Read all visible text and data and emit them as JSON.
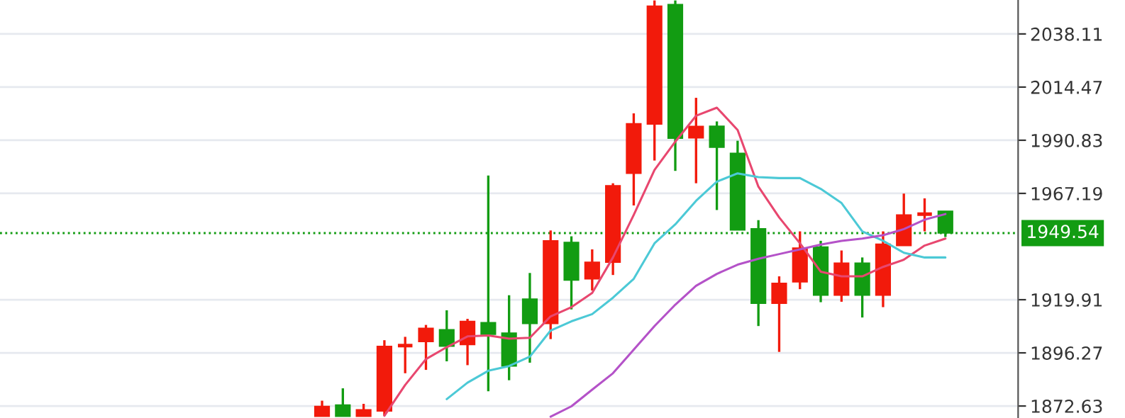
{
  "chart_data": {
    "type": "candlestick",
    "categories": [
      null,
      null,
      null,
      null,
      null,
      null,
      null,
      null,
      null,
      null,
      null,
      null,
      null,
      null,
      null,
      null,
      null,
      null,
      null,
      null,
      null,
      null,
      null,
      null,
      null,
      null,
      null,
      null,
      null,
      null,
      null,
      null,
      null,
      null,
      null,
      null,
      null,
      null,
      null,
      null,
      null,
      null,
      null,
      null,
      null,
      null,
      null,
      null,
      null
    ],
    "ohlc": [
      null,
      null,
      null,
      null,
      null,
      null,
      null,
      null,
      null,
      null,
      null,
      null,
      null,
      null,
      null,
      [
        1868.0,
        1875.0,
        1868.0,
        1872.5
      ],
      [
        1873.1,
        1880.5,
        1868.0,
        1868.0
      ],
      [
        1868.0,
        1873.6,
        1868.0,
        1871.0
      ],
      [
        1870.4,
        1901.9,
        1868.3,
        1899.2
      ],
      [
        1899.0,
        1903.4,
        1887.2,
        1899.5
      ],
      [
        1901.3,
        1908.7,
        1888.7,
        1907.2
      ],
      [
        1906.6,
        1915.2,
        1892.5,
        1899.2
      ],
      [
        1899.9,
        1911.4,
        1890.8,
        1910.3
      ],
      [
        1909.7,
        1975.1,
        1879.2,
        1904.5
      ],
      [
        1905.1,
        1921.9,
        1884.1,
        1890.4
      ],
      [
        1920.2,
        1931.8,
        1891.9,
        1909.3
      ],
      [
        1909.3,
        1950.7,
        1902.4,
        1946.1
      ],
      [
        1945.4,
        1948.1,
        1915.6,
        1928.6
      ],
      [
        1929.2,
        1942.3,
        1924.0,
        1936.6
      ],
      [
        1936.6,
        1971.7,
        1930.9,
        1970.6
      ],
      [
        1976.1,
        2002.8,
        1961.8,
        1998.2
      ],
      [
        1998.0,
        2053.0,
        1981.8,
        2050.5
      ],
      [
        2051.2,
        2053.0,
        1977.2,
        1991.7
      ],
      [
        1991.9,
        2009.7,
        1971.7,
        1997.0
      ],
      [
        1997.1,
        1999.2,
        1959.8,
        1987.7
      ],
      [
        1985.0,
        1990.6,
        1950.9,
        1950.9
      ],
      [
        1951.5,
        1955.3,
        1908.2,
        1918.3
      ],
      [
        1918.3,
        1930.3,
        1896.7,
        1927.2
      ],
      [
        1927.8,
        1950.3,
        1924.6,
        1942.9
      ],
      [
        1943.4,
        1946.1,
        1918.8,
        1921.9
      ],
      [
        1921.9,
        1941.8,
        1919.0,
        1936.2
      ],
      [
        1936.2,
        1938.7,
        1912.0,
        1921.9
      ],
      [
        1921.9,
        1950.3,
        1916.6,
        1944.6
      ],
      [
        1944.0,
        1967.1,
        1944.0,
        1957.6
      ],
      [
        1957.8,
        1965.0,
        1950.3,
        1958.0
      ],
      [
        1959.3,
        1959.3,
        1947.8,
        1949.54
      ],
      null,
      null,
      null
    ],
    "colors": [
      null,
      null,
      null,
      null,
      null,
      null,
      null,
      null,
      null,
      null,
      null,
      null,
      null,
      null,
      null,
      "#f21a0b",
      "#129c12",
      "#f21a0b",
      "#f21a0b",
      "#f21a0b",
      "#f21a0b",
      "#129c12",
      "#f21a0b",
      "#129c12",
      "#129c12",
      "#129c12",
      "#f21a0b",
      "#129c12",
      "#f21a0b",
      "#f21a0b",
      "#f21a0b",
      "#f21a0b",
      "#129c12",
      "#f21a0b",
      "#129c12",
      "#129c12",
      "#129c12",
      "#f21a0b",
      "#f21a0b",
      "#129c12",
      "#f21a0b",
      "#129c12",
      "#f21a0b",
      "#f21a0b",
      "#f21a0b",
      "#129c12",
      null,
      null,
      null
    ],
    "series": [
      {
        "type": "line",
        "color": "#e8476f",
        "values": [
          null,
          null,
          null,
          null,
          null,
          null,
          null,
          null,
          null,
          null,
          null,
          null,
          null,
          null,
          null,
          null,
          null,
          null,
          1868.3,
          1882.0,
          1893.5,
          1898.8,
          1903.6,
          1904.0,
          1902.6,
          1903.0,
          1912.5,
          1916.6,
          1922.9,
          1938.7,
          1957.6,
          1977.6,
          1990.2,
          2001.7,
          2005.3,
          1995.4,
          1970.2,
          1956.5,
          1945.0,
          1932.4,
          1930.3,
          1930.3,
          1934.5,
          1937.7,
          1944.0,
          1947.1,
          null,
          null,
          null
        ]
      },
      {
        "type": "line",
        "color": "#4cc9d6",
        "values": [
          null,
          null,
          null,
          null,
          null,
          null,
          null,
          null,
          null,
          null,
          null,
          null,
          null,
          null,
          null,
          null,
          null,
          null,
          null,
          null,
          null,
          1875.7,
          1883.0,
          1888.3,
          1890.4,
          1894.6,
          1906.2,
          1910.3,
          1913.5,
          1920.8,
          1929.2,
          1945.0,
          1953.4,
          1963.9,
          1972.4,
          1976.1,
          1974.4,
          1974.0,
          1974.0,
          1969.2,
          1962.9,
          1950.3,
          1946.1,
          1940.8,
          1938.7,
          1938.7,
          null,
          null,
          null
        ]
      },
      {
        "type": "line",
        "color": "#b452c8",
        "values": [
          null,
          null,
          null,
          null,
          null,
          null,
          null,
          null,
          null,
          null,
          null,
          null,
          null,
          null,
          null,
          null,
          null,
          null,
          null,
          null,
          null,
          null,
          null,
          null,
          null,
          null,
          1867.9,
          1872.5,
          1879.9,
          1887.2,
          1897.7,
          1908.2,
          1917.7,
          1926.1,
          1931.4,
          1935.5,
          1938.1,
          1940.2,
          1942.3,
          1944.4,
          1946.1,
          1947.1,
          1948.6,
          1951.3,
          1955.5,
          1958.0,
          null,
          null,
          null
        ]
      }
    ],
    "ylim": [
      1867.3,
      2053.2
    ],
    "yticks": [
      {
        "value": 2038.11,
        "label": "2038.11"
      },
      {
        "value": 2014.47,
        "label": "2014.47"
      },
      {
        "value": 1990.83,
        "label": "1990.83"
      },
      {
        "value": 1967.19,
        "label": "1967.19"
      },
      {
        "value": 1919.91,
        "label": "1919.91"
      },
      {
        "value": 1896.27,
        "label": "1896.27"
      },
      {
        "value": 1872.63,
        "label": "1872.63"
      }
    ],
    "ref_lines": [
      {
        "axis": "y",
        "value": 1949.54,
        "label": "1949.54",
        "color": "#129c12",
        "line_style": "dotted"
      }
    ],
    "grid": "y",
    "legend": false
  }
}
